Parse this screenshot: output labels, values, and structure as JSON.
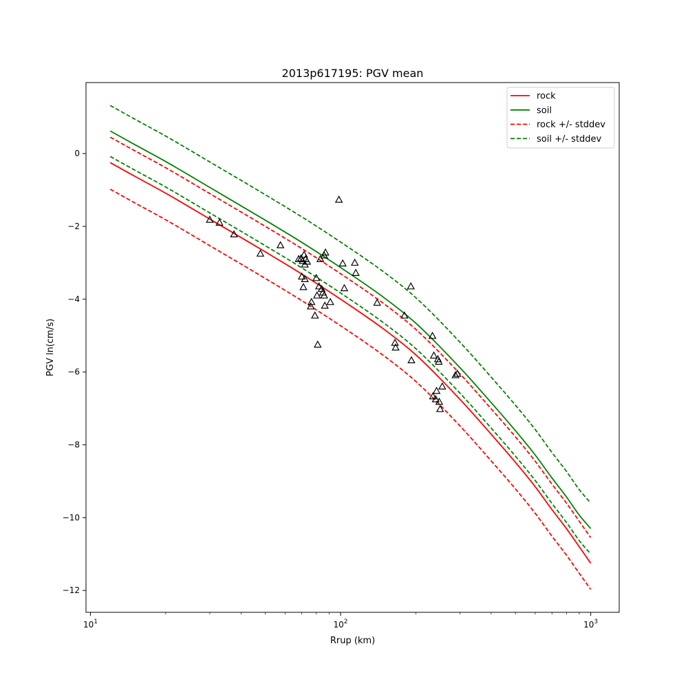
{
  "chart_data": {
    "type": "line",
    "title": "2013p617195: PGV mean",
    "xlabel": "Rrup (km)",
    "ylabel": "PGV ln(cm/s)",
    "xscale": "log",
    "xlim": [
      9.6,
      1300
    ],
    "ylim": [
      -12.6,
      1.95
    ],
    "grid": false,
    "legend_position": "top-right",
    "x_ticks": [
      {
        "value": 10,
        "base": "10",
        "exp": "1"
      },
      {
        "value": 100,
        "base": "10",
        "exp": "2"
      },
      {
        "value": 1000,
        "base": "10",
        "exp": "3"
      }
    ],
    "y_ticks": [
      {
        "value": 0,
        "label": "0"
      },
      {
        "value": -2,
        "label": "−2"
      },
      {
        "value": -4,
        "label": "−4"
      },
      {
        "value": -6,
        "label": "−6"
      },
      {
        "value": -8,
        "label": "−8"
      },
      {
        "value": -10,
        "label": "−10"
      },
      {
        "value": -12,
        "label": "−12"
      }
    ],
    "x": [
      12,
      15,
      20,
      30,
      50,
      70,
      100,
      150,
      200,
      300,
      400,
      500,
      600,
      700,
      800,
      900,
      1000
    ],
    "series": [
      {
        "name": "rock",
        "color": "#ff0000",
        "dash": false,
        "values": [
          -0.25,
          -0.62,
          -1.09,
          -1.8,
          -2.7,
          -3.31,
          -4.0,
          -4.84,
          -5.53,
          -6.75,
          -7.71,
          -8.48,
          -9.15,
          -9.78,
          -10.3,
          -10.8,
          -11.25
        ]
      },
      {
        "name": "soil",
        "color": "#008000",
        "dash": false,
        "values": [
          0.62,
          0.25,
          -0.22,
          -0.93,
          -1.83,
          -2.44,
          -3.13,
          -3.97,
          -4.66,
          -5.88,
          -6.84,
          -7.61,
          -8.28,
          -8.91,
          -9.43,
          -9.93,
          -10.3
        ]
      },
      {
        "name": "rock +/- stddev",
        "color": "#ff0000",
        "dash": true,
        "values": [
          0.45,
          0.08,
          -0.39,
          -1.1,
          -2.0,
          -2.61,
          -3.3,
          -4.14,
          -4.83,
          -6.05,
          -7.01,
          -7.78,
          -8.45,
          -9.08,
          -9.6,
          -10.1,
          -10.55
        ]
      },
      {
        "name": "",
        "color": "#ff0000",
        "dash": true,
        "values": [
          -0.98,
          -1.35,
          -1.82,
          -2.53,
          -3.43,
          -4.04,
          -4.73,
          -5.57,
          -6.26,
          -7.48,
          -8.44,
          -9.21,
          -9.88,
          -10.51,
          -11.03,
          -11.53,
          -11.97
        ]
      },
      {
        "name": "soil +/- stddev",
        "color": "#008000",
        "dash": true,
        "values": [
          1.32,
          0.95,
          0.48,
          -0.23,
          -1.13,
          -1.74,
          -2.43,
          -3.27,
          -3.96,
          -5.18,
          -6.14,
          -6.91,
          -7.58,
          -8.21,
          -8.73,
          -9.23,
          -9.6
        ]
      },
      {
        "name": "",
        "color": "#008000",
        "dash": true,
        "values": [
          -0.08,
          -0.45,
          -0.92,
          -1.63,
          -2.53,
          -3.14,
          -3.83,
          -4.67,
          -5.36,
          -6.58,
          -7.54,
          -8.31,
          -8.98,
          -9.61,
          -10.13,
          -10.63,
          -11.0
        ]
      }
    ],
    "observations": [
      {
        "x": 30,
        "y": -1.82
      },
      {
        "x": 32.8,
        "y": -1.9
      },
      {
        "x": 37.5,
        "y": -2.22
      },
      {
        "x": 47.8,
        "y": -2.75
      },
      {
        "x": 57.5,
        "y": -2.52
      },
      {
        "x": 68,
        "y": -2.9
      },
      {
        "x": 69.5,
        "y": -2.88
      },
      {
        "x": 70.5,
        "y": -2.95
      },
      {
        "x": 71.5,
        "y": -2.78
      },
      {
        "x": 72,
        "y": -3.05
      },
      {
        "x": 72.5,
        "y": -2.9
      },
      {
        "x": 73.5,
        "y": -2.97
      },
      {
        "x": 70,
        "y": -3.38
      },
      {
        "x": 71,
        "y": -3.67
      },
      {
        "x": 72,
        "y": -3.45
      },
      {
        "x": 76.5,
        "y": -4.08
      },
      {
        "x": 76,
        "y": -4.2
      },
      {
        "x": 79,
        "y": -4.45
      },
      {
        "x": 80,
        "y": -3.42
      },
      {
        "x": 80.5,
        "y": -3.9
      },
      {
        "x": 81,
        "y": -5.25
      },
      {
        "x": 82,
        "y": -3.65
      },
      {
        "x": 83,
        "y": -2.9
      },
      {
        "x": 84,
        "y": -3.72
      },
      {
        "x": 85,
        "y": -3.82
      },
      {
        "x": 86,
        "y": -2.8
      },
      {
        "x": 86,
        "y": -3.9
      },
      {
        "x": 87,
        "y": -2.72
      },
      {
        "x": 86.5,
        "y": -4.18
      },
      {
        "x": 91,
        "y": -4.08
      },
      {
        "x": 98.5,
        "y": -1.27
      },
      {
        "x": 102,
        "y": -3.02
      },
      {
        "x": 103.5,
        "y": -3.7
      },
      {
        "x": 114,
        "y": -3.0
      },
      {
        "x": 115,
        "y": -3.28
      },
      {
        "x": 140,
        "y": -4.1
      },
      {
        "x": 165,
        "y": -5.2
      },
      {
        "x": 166,
        "y": -5.33
      },
      {
        "x": 180,
        "y": -4.45
      },
      {
        "x": 191,
        "y": -3.65
      },
      {
        "x": 192,
        "y": -5.68
      },
      {
        "x": 233,
        "y": -5.01
      },
      {
        "x": 234,
        "y": -6.67
      },
      {
        "x": 236,
        "y": -5.55
      },
      {
        "x": 240,
        "y": -6.75
      },
      {
        "x": 242,
        "y": -6.52
      },
      {
        "x": 245,
        "y": -5.65
      },
      {
        "x": 247,
        "y": -5.72
      },
      {
        "x": 248,
        "y": -6.82
      },
      {
        "x": 250,
        "y": -7.02
      },
      {
        "x": 255,
        "y": -6.4
      },
      {
        "x": 288,
        "y": -6.09
      },
      {
        "x": 293,
        "y": -6.05
      }
    ]
  }
}
